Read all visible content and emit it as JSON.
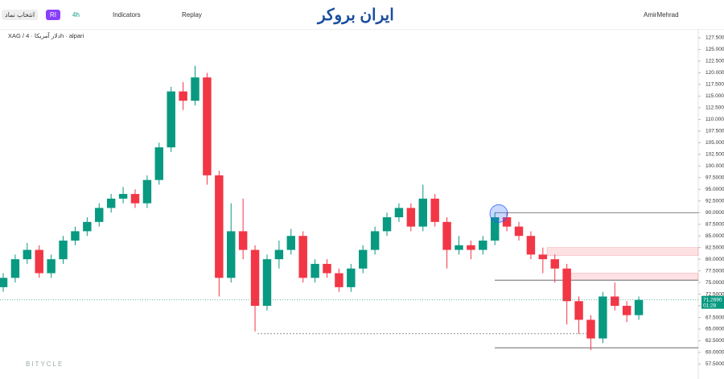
{
  "toolbar": {
    "symbol_button": "انتخاب نماد",
    "indicator_badge": "RI",
    "interval": "4h",
    "indicators": "Indicators",
    "replay": "Replay",
    "logo": "ایران بروکر",
    "user": "AmirMehrad"
  },
  "legend": "XAG / دلار آمریکا · 4h · alpari",
  "watermark": "BITYCLE",
  "chart_data": {
    "type": "candlestick",
    "up_color": "#089981",
    "down_color": "#f23645",
    "ylim": [
      54.3,
      129.4
    ],
    "yticks": [
      {
        "value": 57.5,
        "label": "57.5000"
      },
      {
        "value": 60,
        "label": "60.0000"
      },
      {
        "value": 62.5,
        "label": "62.5000"
      },
      {
        "value": 65,
        "label": "65.0000"
      },
      {
        "value": 67.5,
        "label": "67.5000"
      },
      {
        "value": 70,
        "label": "70.0000"
      },
      {
        "value": 72.5,
        "label": "72.5000"
      },
      {
        "value": 75,
        "label": "75.0000"
      },
      {
        "value": 77.5,
        "label": "77.5000"
      },
      {
        "value": 80,
        "label": "80.0000"
      },
      {
        "value": 82.5,
        "label": "82.5000"
      },
      {
        "value": 85,
        "label": "85.0000"
      },
      {
        "value": 87.5,
        "label": "87.5000"
      },
      {
        "value": 90,
        "label": "90.0000"
      },
      {
        "value": 92.5,
        "label": "92.5000"
      },
      {
        "value": 95,
        "label": "95.0000"
      },
      {
        "value": 97.5,
        "label": "97.5000"
      },
      {
        "value": 100,
        "label": "100.0000"
      },
      {
        "value": 102.5,
        "label": "102.5000"
      },
      {
        "value": 105,
        "label": "105.0000"
      },
      {
        "value": 107.5,
        "label": "107.5000"
      },
      {
        "value": 110,
        "label": "110.0000"
      },
      {
        "value": 112.5,
        "label": "112.5000"
      },
      {
        "value": 115,
        "label": "115.0000"
      },
      {
        "value": 117.5,
        "label": "117.5000"
      },
      {
        "value": 120,
        "label": "120.0000"
      },
      {
        "value": 122.5,
        "label": "122.5000"
      },
      {
        "value": 125,
        "label": "125.0000"
      },
      {
        "value": 127.5,
        "label": "127.5000"
      }
    ],
    "candles": [
      {
        "o": 74,
        "h": 77,
        "l": 73,
        "c": 76
      },
      {
        "o": 76,
        "h": 81,
        "l": 75,
        "c": 80
      },
      {
        "o": 80,
        "h": 83.5,
        "l": 79,
        "c": 82
      },
      {
        "o": 82,
        "h": 83,
        "l": 76,
        "c": 77
      },
      {
        "o": 77,
        "h": 81,
        "l": 76,
        "c": 80
      },
      {
        "o": 80,
        "h": 85,
        "l": 79,
        "c": 84
      },
      {
        "o": 84,
        "h": 87,
        "l": 83,
        "c": 86
      },
      {
        "o": 86,
        "h": 89,
        "l": 85,
        "c": 88
      },
      {
        "o": 88,
        "h": 92,
        "l": 87,
        "c": 91
      },
      {
        "o": 91,
        "h": 94,
        "l": 90,
        "c": 93
      },
      {
        "o": 93,
        "h": 95.5,
        "l": 92,
        "c": 94
      },
      {
        "o": 94,
        "h": 95,
        "l": 91,
        "c": 92
      },
      {
        "o": 92,
        "h": 98,
        "l": 91,
        "c": 97
      },
      {
        "o": 97,
        "h": 105,
        "l": 96,
        "c": 104
      },
      {
        "o": 104,
        "h": 117,
        "l": 103,
        "c": 116
      },
      {
        "o": 116,
        "h": 118,
        "l": 112,
        "c": 114
      },
      {
        "o": 114,
        "h": 121.5,
        "l": 113,
        "c": 119
      },
      {
        "o": 119,
        "h": 120,
        "l": 96,
        "c": 98
      },
      {
        "o": 98,
        "h": 99,
        "l": 72,
        "c": 76
      },
      {
        "o": 76,
        "h": 92,
        "l": 75,
        "c": 86
      },
      {
        "o": 86,
        "h": 93,
        "l": 80,
        "c": 82
      },
      {
        "o": 82,
        "h": 83,
        "l": 64.5,
        "c": 70
      },
      {
        "o": 70,
        "h": 81,
        "l": 69,
        "c": 80
      },
      {
        "o": 80,
        "h": 84,
        "l": 78,
        "c": 82
      },
      {
        "o": 82,
        "h": 86.5,
        "l": 81,
        "c": 85
      },
      {
        "o": 85,
        "h": 86,
        "l": 75,
        "c": 76
      },
      {
        "o": 76,
        "h": 80,
        "l": 75,
        "c": 79
      },
      {
        "o": 79,
        "h": 80,
        "l": 76,
        "c": 77
      },
      {
        "o": 77,
        "h": 78,
        "l": 73,
        "c": 74
      },
      {
        "o": 74,
        "h": 79,
        "l": 73,
        "c": 78
      },
      {
        "o": 78,
        "h": 83,
        "l": 77,
        "c": 82
      },
      {
        "o": 82,
        "h": 87,
        "l": 81,
        "c": 86
      },
      {
        "o": 86,
        "h": 90,
        "l": 85,
        "c": 89
      },
      {
        "o": 89,
        "h": 92,
        "l": 88,
        "c": 91
      },
      {
        "o": 91,
        "h": 92,
        "l": 86,
        "c": 87
      },
      {
        "o": 87,
        "h": 96,
        "l": 86,
        "c": 93
      },
      {
        "o": 93,
        "h": 94,
        "l": 87,
        "c": 88
      },
      {
        "o": 88,
        "h": 89,
        "l": 78,
        "c": 82
      },
      {
        "o": 82,
        "h": 85,
        "l": 81,
        "c": 83
      },
      {
        "o": 83,
        "h": 84,
        "l": 80,
        "c": 82
      },
      {
        "o": 82,
        "h": 85,
        "l": 81,
        "c": 84
      },
      {
        "o": 84,
        "h": 90,
        "l": 83,
        "c": 89
      },
      {
        "o": 89,
        "h": 90,
        "l": 86,
        "c": 87
      },
      {
        "o": 87,
        "h": 88,
        "l": 84,
        "c": 85
      },
      {
        "o": 85,
        "h": 86,
        "l": 80,
        "c": 81
      },
      {
        "o": 81,
        "h": 82.5,
        "l": 77,
        "c": 80
      },
      {
        "o": 80,
        "h": 81,
        "l": 75,
        "c": 78
      },
      {
        "o": 78,
        "h": 79,
        "l": 66,
        "c": 71
      },
      {
        "o": 71,
        "h": 72,
        "l": 64,
        "c": 67
      },
      {
        "o": 67,
        "h": 68,
        "l": 60.5,
        "c": 63
      },
      {
        "o": 63,
        "h": 73,
        "l": 62,
        "c": 72
      },
      {
        "o": 72,
        "h": 75,
        "l": 69,
        "c": 70
      },
      {
        "o": 70,
        "h": 71,
        "l": 66.5,
        "c": 68
      },
      {
        "o": 68,
        "h": 72,
        "l": 67,
        "c": 71.269
      }
    ],
    "levels": [
      90,
      75.5,
      61,
      64
    ],
    "zones": [
      [
        80.8,
        82.5
      ],
      [
        75.5,
        77
      ]
    ],
    "circle_price": 89.8,
    "last_price": {
      "value": 71.269,
      "label": "71.2690"
    },
    "countdown": "01:28"
  }
}
